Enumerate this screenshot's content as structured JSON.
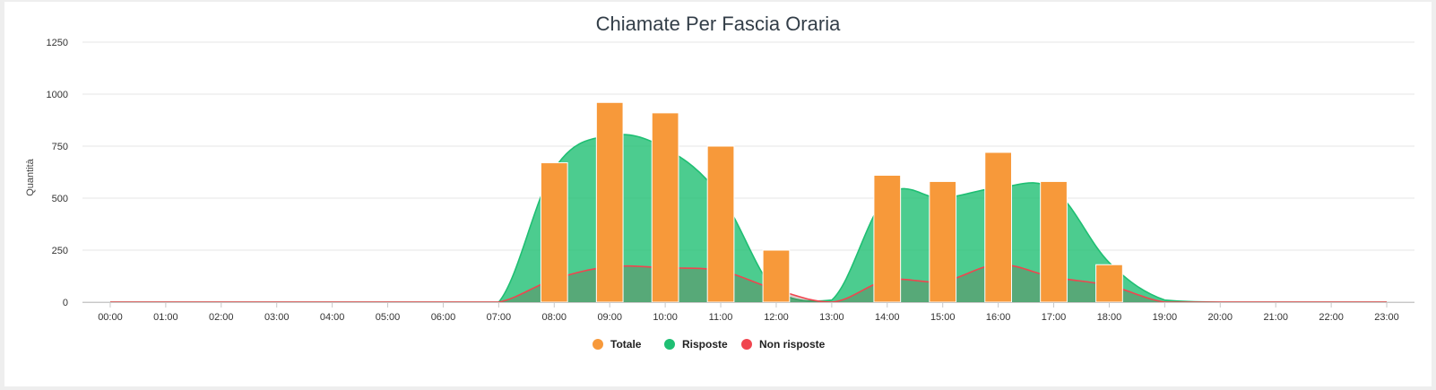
{
  "chart_data": {
    "type": "bar",
    "title": "Chiamate Per Fascia Oraria",
    "xlabel": "",
    "ylabel": "Quantità",
    "ylim": [
      0,
      1250
    ],
    "yticks": [
      0,
      250,
      500,
      750,
      1000,
      1250
    ],
    "grid": true,
    "legend_position": "bottom",
    "categories": [
      "00:00",
      "01:00",
      "02:00",
      "03:00",
      "04:00",
      "05:00",
      "06:00",
      "07:00",
      "08:00",
      "09:00",
      "10:00",
      "11:00",
      "12:00",
      "13:00",
      "14:00",
      "15:00",
      "16:00",
      "17:00",
      "18:00",
      "19:00",
      "20:00",
      "21:00",
      "22:00",
      "23:00"
    ],
    "series": [
      {
        "name": "Totale",
        "chart_type": "bar",
        "color": "#f7993a",
        "values": [
          0,
          0,
          0,
          0,
          0,
          0,
          0,
          0,
          670,
          960,
          910,
          750,
          250,
          0,
          610,
          580,
          720,
          580,
          180,
          0,
          0,
          0,
          0,
          0
        ]
      },
      {
        "name": "Risposte",
        "chart_type": "area",
        "color": "#1fbf73",
        "values": [
          0,
          0,
          0,
          0,
          0,
          0,
          0,
          0,
          640,
          800,
          740,
          510,
          50,
          10,
          510,
          500,
          550,
          540,
          190,
          10,
          0,
          0,
          0,
          0
        ]
      },
      {
        "name": "Non risposte",
        "chart_type": "area",
        "color": "#f0454f",
        "values": [
          0,
          0,
          0,
          0,
          0,
          0,
          0,
          0,
          110,
          170,
          165,
          150,
          60,
          0,
          105,
          100,
          180,
          120,
          80,
          0,
          0,
          0,
          0,
          0
        ]
      }
    ]
  }
}
